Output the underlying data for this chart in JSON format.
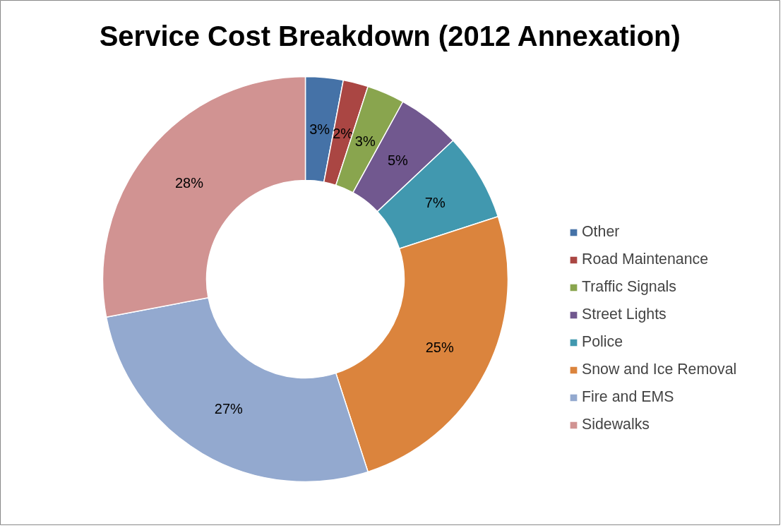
{
  "chart_data": {
    "type": "donut",
    "title": "Service Cost Breakdown (2012 Annexation)",
    "categories": [
      "Other",
      "Road Maintenance",
      "Traffic Signals",
      "Street Lights",
      "Police",
      "Snow and Ice Removal",
      "Fire and EMS",
      "Sidewalks"
    ],
    "values": [
      3,
      2,
      3,
      5,
      7,
      25,
      27,
      28
    ],
    "colors": [
      "#4572a7",
      "#aa4643",
      "#89a54e",
      "#71588f",
      "#4198af",
      "#db843d",
      "#93a9cf",
      "#d19392"
    ],
    "value_labels": [
      "3%",
      "2%",
      "3%",
      "5%",
      "7%",
      "25%",
      "27%",
      "28%"
    ],
    "legend": "right"
  }
}
